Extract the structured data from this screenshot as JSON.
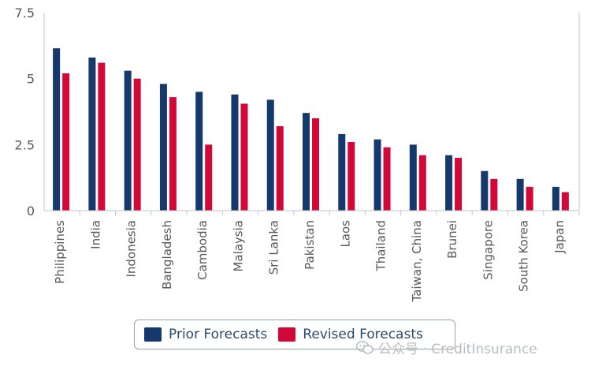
{
  "colors": {
    "prior": "#16396d",
    "revised": "#d10838",
    "axis": "#c0c6cd",
    "text": "#595959",
    "legend_text": "#2b4a6f"
  },
  "chart_data": {
    "type": "bar",
    "categories": [
      "Philippines",
      "India",
      "Indonesia",
      "Bangladesh",
      "Cambodia",
      "Malaysia",
      "Sri Lanka",
      "Pakistan",
      "Laos",
      "Thailand",
      "Taiwan, China",
      "Brunei",
      "Singapore",
      "South Korea",
      "Japan"
    ],
    "series": [
      {
        "name": "Prior Forecasts",
        "values": [
          6.15,
          5.8,
          5.3,
          4.8,
          4.5,
          4.4,
          4.2,
          3.7,
          2.9,
          2.7,
          2.5,
          2.1,
          1.5,
          1.2,
          0.9
        ]
      },
      {
        "name": "Revised Forecasts",
        "values": [
          5.2,
          5.6,
          5.0,
          4.3,
          2.5,
          4.05,
          3.2,
          3.5,
          2.6,
          2.4,
          2.1,
          2.0,
          1.2,
          0.9,
          0.7
        ]
      }
    ],
    "y_ticks": [
      "0",
      "2.5",
      "5",
      "7.5"
    ],
    "ylim": [
      0,
      7.5
    ],
    "legend_position": "bottom"
  },
  "legend": {
    "prior_label": "Prior Forecasts",
    "revised_label": "Revised Forecasts"
  },
  "watermark": {
    "text": "公众号 · CreditInsurance"
  }
}
